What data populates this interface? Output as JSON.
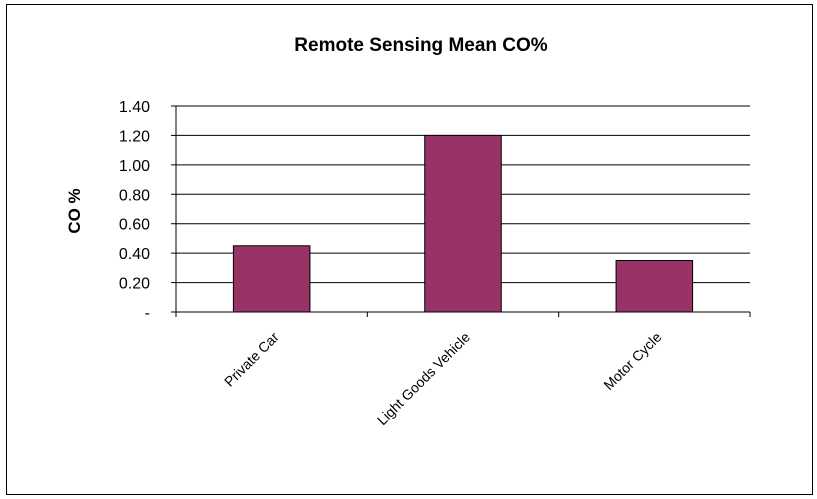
{
  "chart_data": {
    "type": "bar",
    "title": "Remote Sensing Mean CO%",
    "xlabel": "",
    "ylabel": "CO %",
    "categories": [
      "Private Car",
      "Light Goods Vehicle",
      "Motor Cycle"
    ],
    "values": [
      0.45,
      1.2,
      0.35
    ],
    "ylim": [
      0,
      1.4
    ],
    "yticks": [
      "-",
      "0.20",
      "0.40",
      "0.60",
      "0.80",
      "1.00",
      "1.20",
      "1.40"
    ],
    "grid": true,
    "legend": "none",
    "bar_color": "#993366"
  }
}
